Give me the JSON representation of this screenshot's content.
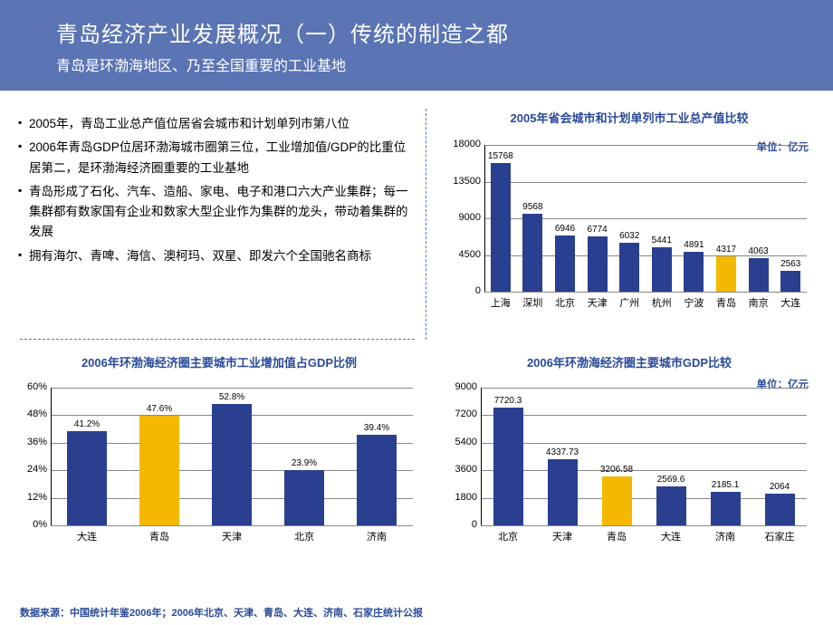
{
  "header": {
    "title": "青岛经济产业发展概况（一）传统的制造之都",
    "subtitle": "青岛是环渤海地区、乃至全国重要的工业基地"
  },
  "bullets": [
    "2005年，青岛工业总产值位居省会城市和计划单列市第八位",
    "2006年青岛GDP位居环渤海城市圈第三位，工业增加值/GDP的比重位居第二，是环渤海经济圈重要的工业基地",
    "青岛形成了石化、汽车、造船、家电、电子和港口六大产业集群；每一集群都有数家国有企业和数家大型企业作为集群的龙头，带动着集群的发展",
    "拥有海尔、青啤、海信、澳柯玛、双星、即发六个全国驰名商标"
  ],
  "chart1": {
    "title": "2005年省会城市和计划单列市工业总产值比较",
    "unit": "单位：亿元",
    "categories": [
      "上海",
      "深圳",
      "北京",
      "天津",
      "广州",
      "杭州",
      "宁波",
      "青岛",
      "南京",
      "大连"
    ],
    "values": [
      15768,
      9568,
      6946,
      6774,
      6032,
      5441,
      4891,
      4317,
      4063,
      2563
    ],
    "highlight_index": 7,
    "bar_color": "#2a3f8f",
    "highlight_color": "#f5b800",
    "yticks": [
      0,
      4500,
      9000,
      13500,
      18000
    ],
    "ymax": 18000
  },
  "chart2": {
    "title": "2006年环渤海经济圈主要城市工业增加值占GDP比例",
    "categories": [
      "大连",
      "青岛",
      "天津",
      "北京",
      "济南"
    ],
    "values": [
      41.2,
      47.6,
      52.8,
      23.9,
      39.4
    ],
    "value_labels": [
      "41.2%",
      "47.6%",
      "52.8%",
      "23.9%",
      "39.4%"
    ],
    "highlight_index": 1,
    "bar_color": "#2a3f8f",
    "highlight_color": "#f5b800",
    "yticks": [
      "0%",
      "12%",
      "24%",
      "36%",
      "48%",
      "60%"
    ],
    "ymax": 60
  },
  "chart3": {
    "title": "2006年环渤海经济圈主要城市GDP比较",
    "unit": "单位：亿元",
    "categories": [
      "北京",
      "天津",
      "青岛",
      "大连",
      "济南",
      "石家庄"
    ],
    "values": [
      7720.3,
      4337.73,
      3206.58,
      2569.6,
      2185.1,
      2064
    ],
    "value_labels": [
      "7720.3",
      "4337.73",
      "3206.58",
      "2569.6",
      "2185.1",
      "2064"
    ],
    "highlight_index": 2,
    "bar_color": "#2a3f8f",
    "highlight_color": "#f5b800",
    "yticks": [
      0,
      1800,
      3600,
      5400,
      7200,
      9000
    ],
    "ymax": 9000
  },
  "source": "数据来源：中国统计年鉴2006年；2006年北京、天津、青岛、大连、济南、石家庄统计公报"
}
